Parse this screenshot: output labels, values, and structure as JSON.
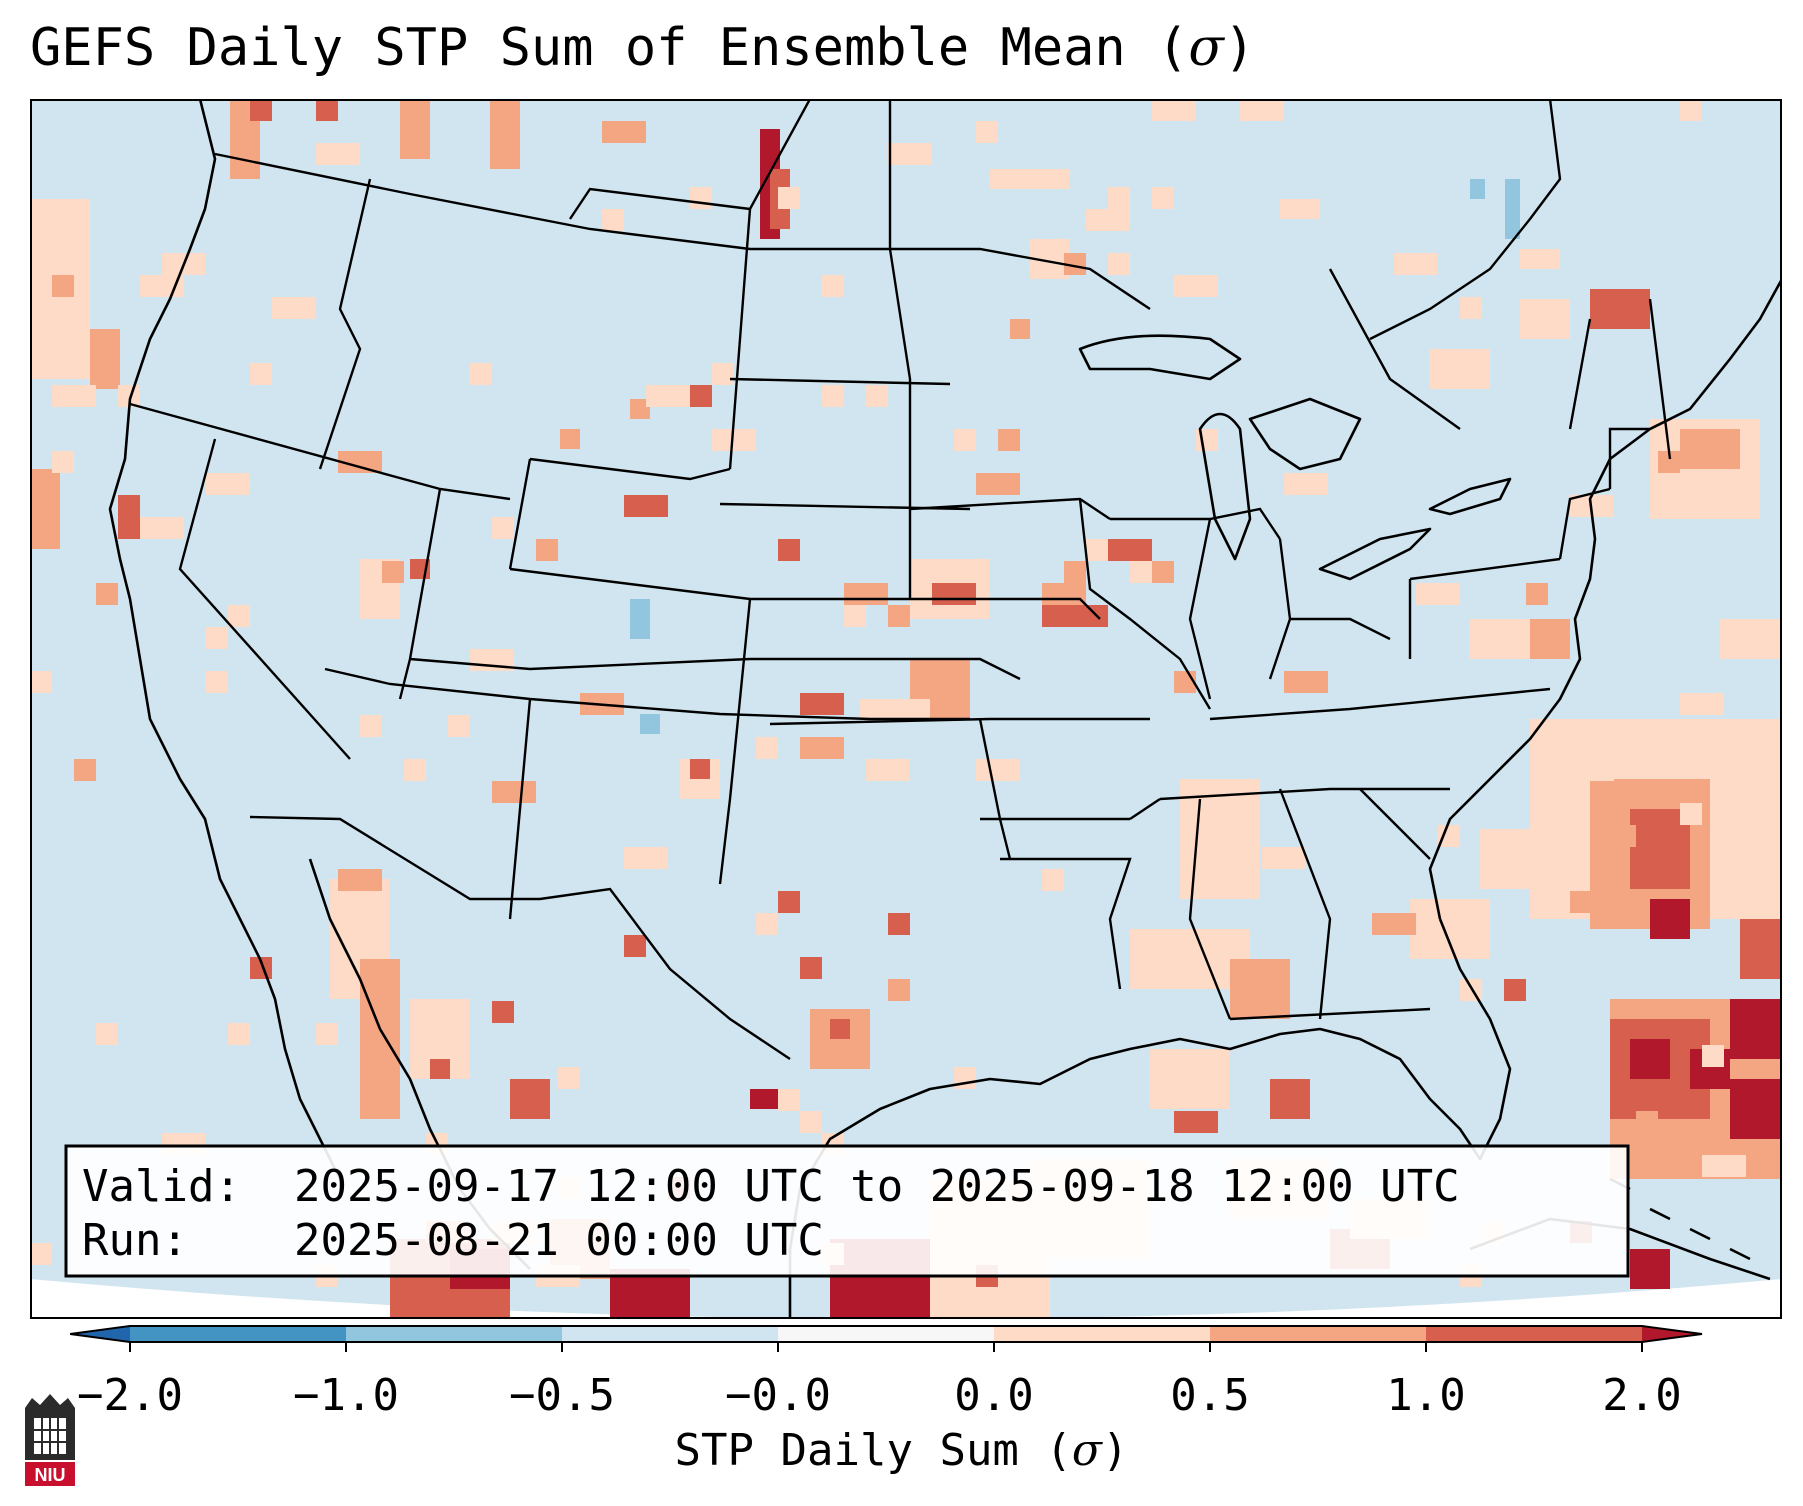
{
  "title": {
    "text": "GEFS Daily STP Sum of Ensemble Mean (",
    "symbol": "σ",
    "close": ")"
  },
  "info_box": {
    "valid_label": "Valid:",
    "valid_value": "2025-09-17 12:00 UTC to 2025-09-18 12:00 UTC",
    "run_label": "Run:",
    "run_value": "2025-08-21 00:00 UTC"
  },
  "colorbar": {
    "label_text": "STP Daily Sum (",
    "label_symbol": "σ",
    "label_close": ")",
    "bins": [
      {
        "from": -2.0,
        "to": -1.0,
        "color": "#4393c3"
      },
      {
        "from": -1.0,
        "to": -0.5,
        "color": "#92c5de"
      },
      {
        "from": -0.5,
        "to": -0.0,
        "color": "#d1e5f0"
      },
      {
        "from": -0.0,
        "to": 0.0,
        "color": "#f7f7f7"
      },
      {
        "from": 0.0,
        "to": 0.5,
        "color": "#fddbc7"
      },
      {
        "from": 0.5,
        "to": 1.0,
        "color": "#f4a582"
      },
      {
        "from": 1.0,
        "to": 2.0,
        "color": "#d6604d"
      }
    ],
    "under_color": "#2166ac",
    "over_color": "#b2182b",
    "tick_labels": [
      "−2.0",
      "−1.0",
      "−0.5",
      "−0.0",
      "0.0",
      "0.5",
      "1.0",
      "2.0"
    ]
  },
  "map_colors": {
    "background": "#d1e5f0",
    "weak_pos": "#fddbc7",
    "mod_pos": "#f4a582",
    "strong_pos": "#d6604d",
    "extreme_pos": "#b2182b",
    "weak_neg": "#92c5de"
  },
  "logo": {
    "text": "NIU",
    "color": "#c8102e"
  }
}
